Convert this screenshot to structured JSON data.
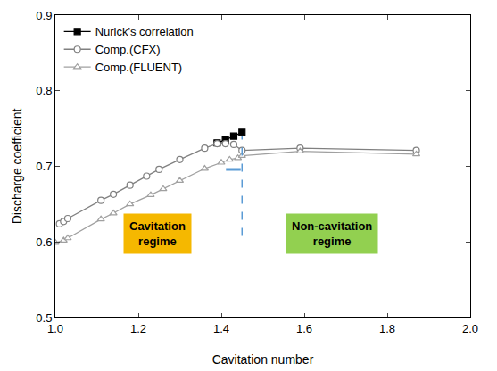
{
  "chart_data": {
    "type": "line",
    "x_label": "Cavitation number",
    "y_label": "Discharge coefficient",
    "xlim": [
      1.0,
      2.0
    ],
    "xticks": [
      {
        "value": 1.0,
        "label": "1.0"
      },
      1.2,
      1.4,
      1.6,
      1.8,
      {
        "value": 2.0,
        "label": "2.0"
      }
    ],
    "ylim": [
      0.5,
      0.9
    ],
    "yticks": [
      0.5,
      0.6,
      0.7,
      0.8,
      0.9
    ],
    "grid": false,
    "legend": "top-left",
    "series": [
      {
        "name": "Nurick's correlation",
        "color": "#000000",
        "marker": "square",
        "line_style": "solid",
        "x": [
          1.39,
          1.41,
          1.43,
          1.45
        ],
        "values": [
          0.731,
          0.735,
          0.74,
          0.745
        ]
      },
      {
        "name": "Comp.(CFX)",
        "color": "#808080",
        "marker": "circle-open",
        "line_style": "solid",
        "x": [
          1.01,
          1.02,
          1.03,
          1.11,
          1.14,
          1.18,
          1.22,
          1.25,
          1.3,
          1.36,
          1.39,
          1.41,
          1.43,
          1.45,
          1.59,
          1.87
        ],
        "values": [
          0.624,
          0.627,
          0.631,
          0.655,
          0.663,
          0.675,
          0.687,
          0.696,
          0.709,
          0.724,
          0.73,
          0.73,
          0.729,
          0.721,
          0.724,
          0.721
        ]
      },
      {
        "name": "Comp.(FLUENT)",
        "color": "#a0a0a0",
        "marker": "triangle-up-open",
        "line_style": "solid",
        "x": [
          1.0,
          1.02,
          1.03,
          1.11,
          1.14,
          1.18,
          1.23,
          1.26,
          1.3,
          1.36,
          1.4,
          1.42,
          1.44,
          1.45,
          1.59,
          1.87
        ],
        "values": [
          0.599,
          0.602,
          0.605,
          0.63,
          0.638,
          0.65,
          0.662,
          0.67,
          0.681,
          0.697,
          0.705,
          0.709,
          0.711,
          0.714,
          0.72,
          0.716
        ]
      }
    ],
    "boundary": 1.45,
    "annotations": [
      {
        "lines": [
          "Cavitation",
          "regime"
        ],
        "color": "#f5b800"
      },
      {
        "lines": [
          "Non-cavitation",
          "regime"
        ],
        "color": "#92d050"
      }
    ]
  }
}
